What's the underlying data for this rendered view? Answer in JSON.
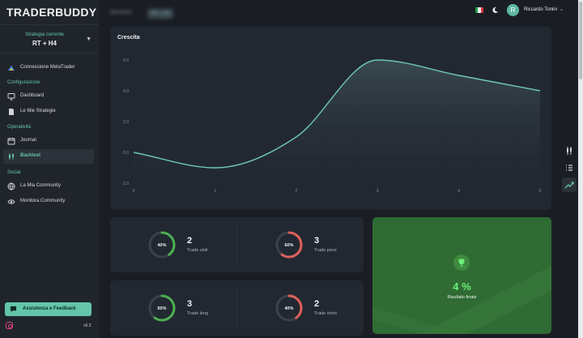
{
  "app": {
    "logo": "TRADERBUDDY"
  },
  "sidebar": {
    "strategy_caption": "Strategia corrente",
    "strategy_value": "RT + H4",
    "connect": "Connessione MetaTrader",
    "sections": {
      "config": "Configurazione",
      "ops": "Operatività",
      "social": "Social"
    },
    "items": [
      {
        "label": "Dashboard",
        "icon": "monitor-icon"
      },
      {
        "label": "Le Mie Strategie",
        "icon": "document-icon"
      },
      {
        "label": "Journal",
        "icon": "calendar-icon"
      },
      {
        "label": "Backtest",
        "icon": "candlestick-icon",
        "active": true
      },
      {
        "label": "La Mia Community",
        "icon": "globe-icon"
      },
      {
        "label": "Monitora Community",
        "icon": "eye-icon"
      }
    ],
    "help_button": "Assistenza e Feedback",
    "version": "v6.3"
  },
  "header": {
    "breadcrumb": "Backtest",
    "breadcrumb_badge": "RT + H4",
    "user_initial": "R",
    "user_name": "Riccardo Tonini"
  },
  "chart_data": {
    "type": "area",
    "title": "Crescita",
    "x": [
      0,
      1,
      2,
      3,
      4,
      5
    ],
    "values": [
      0.0,
      -1.0,
      1.0,
      6.0,
      5.0,
      4.0
    ],
    "xlabel": "",
    "ylabel": "",
    "xlim": [
      0,
      5
    ],
    "ylim": [
      -2.0,
      6.0
    ],
    "yticks": [
      "-2.0",
      "0.0",
      "2.0",
      "4.0",
      "6.0"
    ],
    "xticks": [
      "0",
      "1",
      "2",
      "3",
      "4",
      "5"
    ],
    "grid": true,
    "line_color": "#6ec7b3"
  },
  "stats": [
    {
      "pct": "40%",
      "pct_value": 0.4,
      "value": "2",
      "label": "Trade vinti",
      "color": "#4caf50"
    },
    {
      "pct": "60%",
      "pct_value": 0.6,
      "value": "3",
      "label": "Trade persi",
      "color": "#e0615b"
    },
    {
      "pct": "60%",
      "pct_value": 0.6,
      "value": "3",
      "label": "Trade long",
      "color": "#4caf50"
    },
    {
      "pct": "40%",
      "pct_value": 0.4,
      "value": "2",
      "label": "Trade short",
      "color": "#e0615b"
    }
  ],
  "result": {
    "value": "4 %",
    "label": "Risultato finale"
  }
}
